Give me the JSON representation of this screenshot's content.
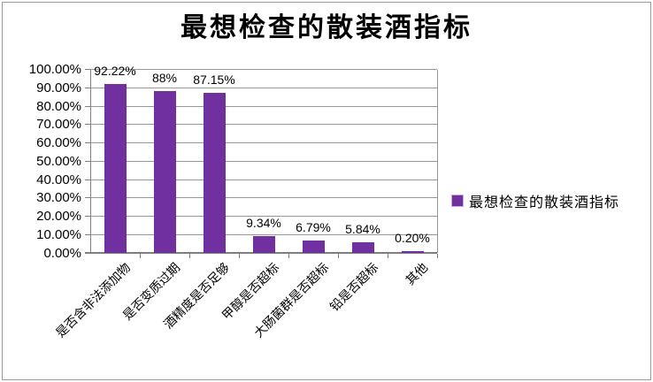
{
  "chart_data": {
    "type": "bar",
    "title": "最想检查的散装酒指标",
    "categories": [
      "是否含非法添加物",
      "是否变质过期",
      "酒精度是否足够",
      "甲醇是否超标",
      "大肠菌群是否超标",
      "铅是否超标",
      "其他"
    ],
    "series": [
      {
        "name": "最想检查的散装酒指标",
        "values": [
          92.22,
          88,
          87.15,
          9.34,
          6.79,
          5.84,
          0.2
        ]
      }
    ],
    "data_labels": [
      "92.22%",
      "88%",
      "87.15%",
      "9.34%",
      "6.79%",
      "5.84%",
      "0.20%"
    ],
    "y_ticks": [
      "0.00%",
      "10.00%",
      "20.00%",
      "30.00%",
      "40.00%",
      "50.00%",
      "60.00%",
      "70.00%",
      "80.00%",
      "90.00%",
      "100.00%"
    ],
    "ylim": [
      0,
      100
    ],
    "xlabel": "",
    "ylabel": "",
    "grid": true,
    "legend": {
      "position": "right",
      "label": "最想检查的散装酒指标"
    },
    "colors": {
      "bar": "#7030A0",
      "legend_marker": "#7030A0",
      "gridline": "#989898",
      "axis": "#7f7f7f",
      "text": "#000000"
    }
  }
}
